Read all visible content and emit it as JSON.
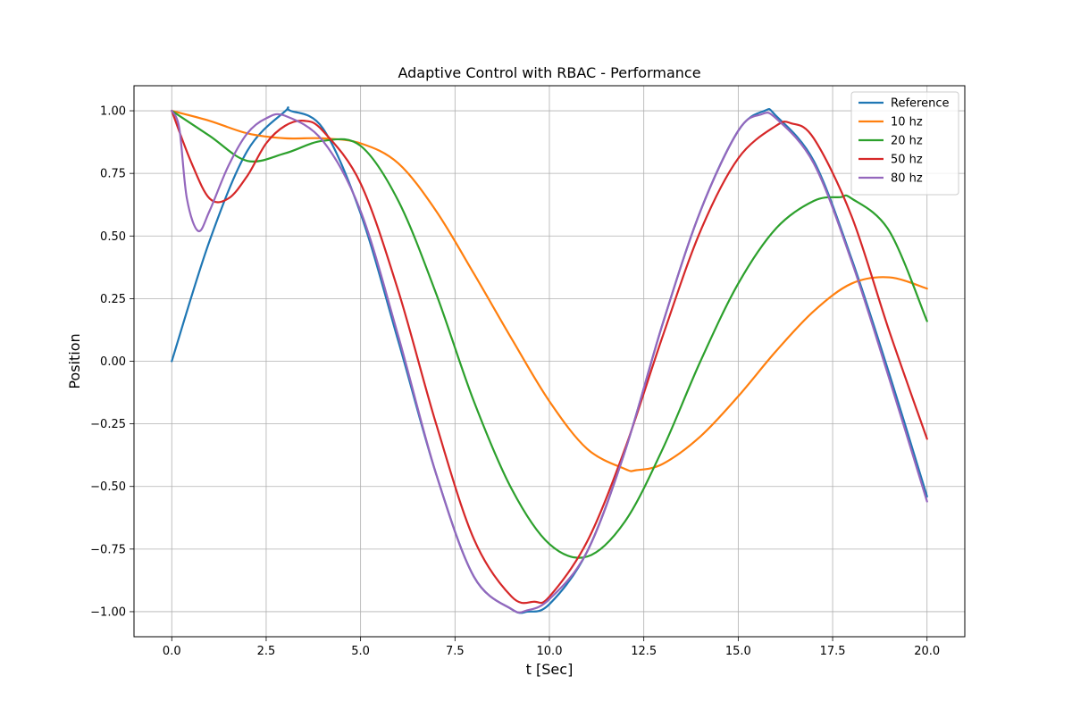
{
  "chart_data": {
    "type": "line",
    "title": "Adaptive Control with RBAC - Performance",
    "xlabel": "t [Sec]",
    "ylabel": "Position",
    "xlim": [
      -1.0,
      21.0
    ],
    "ylim": [
      -1.1,
      1.1
    ],
    "xticks": [
      0.0,
      2.5,
      5.0,
      7.5,
      10.0,
      12.5,
      15.0,
      17.5,
      20.0
    ],
    "xtick_labels": [
      "0.0",
      "2.5",
      "5.0",
      "7.5",
      "10.0",
      "12.5",
      "15.0",
      "17.5",
      "20.0"
    ],
    "yticks": [
      -1.0,
      -0.75,
      -0.5,
      -0.25,
      0.0,
      0.25,
      0.5,
      0.75,
      1.0
    ],
    "ytick_labels": [
      "−1.00",
      "−0.75",
      "−0.50",
      "−0.25",
      "0.00",
      "0.25",
      "0.50",
      "0.75",
      "1.00"
    ],
    "grid": true,
    "legend_position": "top-right",
    "series": [
      {
        "name": "Reference",
        "color": "#1f77b4",
        "x": [
          0,
          1,
          2,
          3,
          3.14,
          4,
          5,
          6,
          7,
          8,
          9,
          9.42,
          10,
          11,
          12,
          13,
          14,
          15,
          15.7,
          16,
          17,
          18,
          19,
          20
        ],
        "y": [
          0.0,
          0.48,
          0.84,
          0.998,
          1.0,
          0.93,
          0.59,
          0.08,
          -0.45,
          -0.86,
          -0.99,
          -1.0,
          -0.97,
          -0.76,
          -0.36,
          0.15,
          0.6,
          0.92,
          1.0,
          0.98,
          0.8,
          0.41,
          -0.05,
          -0.54
        ]
      },
      {
        "name": "10 hz",
        "color": "#ff7f0e",
        "x": [
          0,
          1,
          2,
          3,
          4,
          5,
          6,
          7,
          8,
          9,
          10,
          11,
          12,
          12.3,
          13,
          14,
          15,
          16,
          17,
          18,
          19,
          20
        ],
        "y": [
          1.0,
          0.96,
          0.91,
          0.89,
          0.89,
          0.87,
          0.79,
          0.6,
          0.35,
          0.09,
          -0.16,
          -0.35,
          -0.43,
          -0.435,
          -0.41,
          -0.3,
          -0.14,
          0.04,
          0.2,
          0.31,
          0.335,
          0.29
        ]
      },
      {
        "name": "20 hz",
        "color": "#2ca02c",
        "x": [
          0,
          1,
          2,
          3,
          4,
          5,
          6,
          7,
          8,
          9,
          10,
          11,
          12,
          13,
          14,
          15,
          16,
          17,
          17.7,
          18,
          19,
          20
        ],
        "y": [
          1.0,
          0.9,
          0.8,
          0.83,
          0.88,
          0.86,
          0.64,
          0.27,
          -0.16,
          -0.51,
          -0.73,
          -0.78,
          -0.64,
          -0.35,
          0.0,
          0.31,
          0.53,
          0.64,
          0.655,
          0.65,
          0.52,
          0.16
        ]
      },
      {
        "name": "50 hz",
        "color": "#d62728",
        "x": [
          0,
          0.5,
          1,
          1.5,
          2,
          2.5,
          3,
          3.5,
          4,
          5,
          6,
          7,
          8,
          9,
          9.6,
          10,
          11,
          12,
          13,
          14,
          15,
          16,
          16.4,
          17,
          18,
          19,
          20
        ],
        "y": [
          1.0,
          0.8,
          0.65,
          0.65,
          0.74,
          0.87,
          0.94,
          0.96,
          0.92,
          0.71,
          0.28,
          -0.25,
          -0.71,
          -0.94,
          -0.96,
          -0.94,
          -0.72,
          -0.35,
          0.1,
          0.52,
          0.81,
          0.94,
          0.95,
          0.89,
          0.58,
          0.12,
          -0.31
        ]
      },
      {
        "name": "80 hz",
        "color": "#9467bd",
        "x": [
          0,
          0.2,
          0.4,
          0.7,
          1,
          1.5,
          2,
          2.5,
          3,
          4,
          5,
          6,
          7,
          8,
          9,
          9.4,
          10,
          11,
          12,
          13,
          14,
          15,
          15.6,
          16,
          17,
          18,
          19,
          20
        ],
        "y": [
          1.0,
          0.93,
          0.65,
          0.52,
          0.6,
          0.78,
          0.91,
          0.97,
          0.98,
          0.88,
          0.6,
          0.1,
          -0.45,
          -0.86,
          -0.99,
          -0.995,
          -0.95,
          -0.76,
          -0.36,
          0.15,
          0.6,
          0.92,
          0.985,
          0.97,
          0.79,
          0.4,
          -0.07,
          -0.56
        ]
      }
    ]
  }
}
